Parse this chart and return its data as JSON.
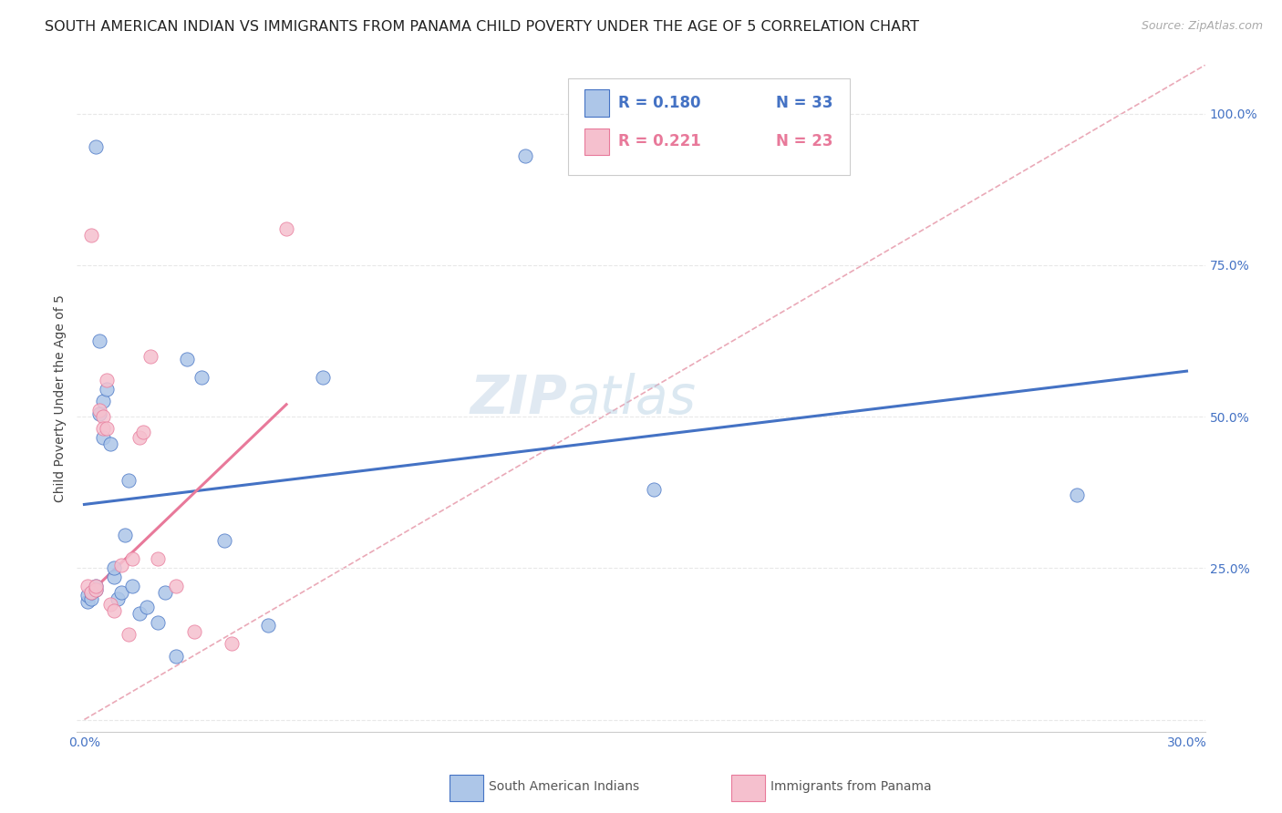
{
  "title": "SOUTH AMERICAN INDIAN VS IMMIGRANTS FROM PANAMA CHILD POVERTY UNDER THE AGE OF 5 CORRELATION CHART",
  "source": "Source: ZipAtlas.com",
  "ylabel": "Child Poverty Under the Age of 5",
  "watermark_zip": "ZIP",
  "watermark_atlas": "atlas",
  "legend_blue_R": "R = 0.180",
  "legend_blue_N": "N = 33",
  "legend_pink_R": "R = 0.221",
  "legend_pink_N": "N = 23",
  "legend_label_blue": "South American Indians",
  "legend_label_pink": "Immigrants from Panama",
  "x_ticks": [
    0.0,
    0.05,
    0.1,
    0.15,
    0.2,
    0.25,
    0.3
  ],
  "x_tick_labels": [
    "0.0%",
    "",
    "",
    "",
    "",
    "",
    "30.0%"
  ],
  "y_ticks": [
    0.0,
    0.25,
    0.5,
    0.75,
    1.0
  ],
  "y_tick_labels": [
    "",
    "25.0%",
    "50.0%",
    "75.0%",
    "100.0%"
  ],
  "xlim": [
    -0.002,
    0.305
  ],
  "ylim": [
    -0.02,
    1.08
  ],
  "blue_scatter_x": [
    0.001,
    0.001,
    0.002,
    0.002,
    0.003,
    0.003,
    0.004,
    0.004,
    0.005,
    0.005,
    0.006,
    0.007,
    0.008,
    0.008,
    0.009,
    0.01,
    0.011,
    0.012,
    0.013,
    0.015,
    0.017,
    0.02,
    0.022,
    0.025,
    0.028,
    0.032,
    0.038,
    0.05,
    0.065,
    0.12,
    0.155,
    0.27,
    0.003
  ],
  "blue_scatter_y": [
    0.195,
    0.205,
    0.2,
    0.21,
    0.215,
    0.22,
    0.625,
    0.505,
    0.465,
    0.525,
    0.545,
    0.455,
    0.235,
    0.25,
    0.2,
    0.21,
    0.305,
    0.395,
    0.22,
    0.175,
    0.185,
    0.16,
    0.21,
    0.105,
    0.595,
    0.565,
    0.295,
    0.155,
    0.565,
    0.93,
    0.38,
    0.37,
    0.945
  ],
  "pink_scatter_x": [
    0.001,
    0.002,
    0.003,
    0.003,
    0.004,
    0.005,
    0.005,
    0.006,
    0.007,
    0.008,
    0.01,
    0.012,
    0.013,
    0.015,
    0.016,
    0.018,
    0.02,
    0.025,
    0.03,
    0.04,
    0.055,
    0.002,
    0.006
  ],
  "pink_scatter_y": [
    0.22,
    0.21,
    0.215,
    0.22,
    0.51,
    0.5,
    0.48,
    0.56,
    0.19,
    0.18,
    0.255,
    0.14,
    0.265,
    0.465,
    0.475,
    0.6,
    0.265,
    0.22,
    0.145,
    0.125,
    0.81,
    0.8,
    0.48
  ],
  "blue_line_x0": 0.0,
  "blue_line_y0": 0.355,
  "blue_line_x1": 0.3,
  "blue_line_y1": 0.575,
  "pink_line_x0": 0.0,
  "pink_line_y0": 0.2,
  "pink_line_x1": 0.055,
  "pink_line_y1": 0.52,
  "diag_line_x0": 0.0,
  "diag_line_y0": 0.0,
  "diag_line_x1": 0.305,
  "diag_line_y1": 1.08,
  "blue_color": "#adc6e8",
  "blue_line_color": "#4472c4",
  "pink_color": "#f5c0ce",
  "pink_line_color": "#e8799a",
  "diag_color": "#e8a0b0",
  "grid_color": "#e8e8e8",
  "bg_color": "#ffffff",
  "title_color": "#222222",
  "source_color": "#aaaaaa",
  "ylabel_color": "#444444",
  "tick_color": "#4472c4",
  "title_fontsize": 11.5,
  "source_fontsize": 9,
  "ylabel_fontsize": 10,
  "tick_fontsize": 10,
  "scatter_size": 120
}
